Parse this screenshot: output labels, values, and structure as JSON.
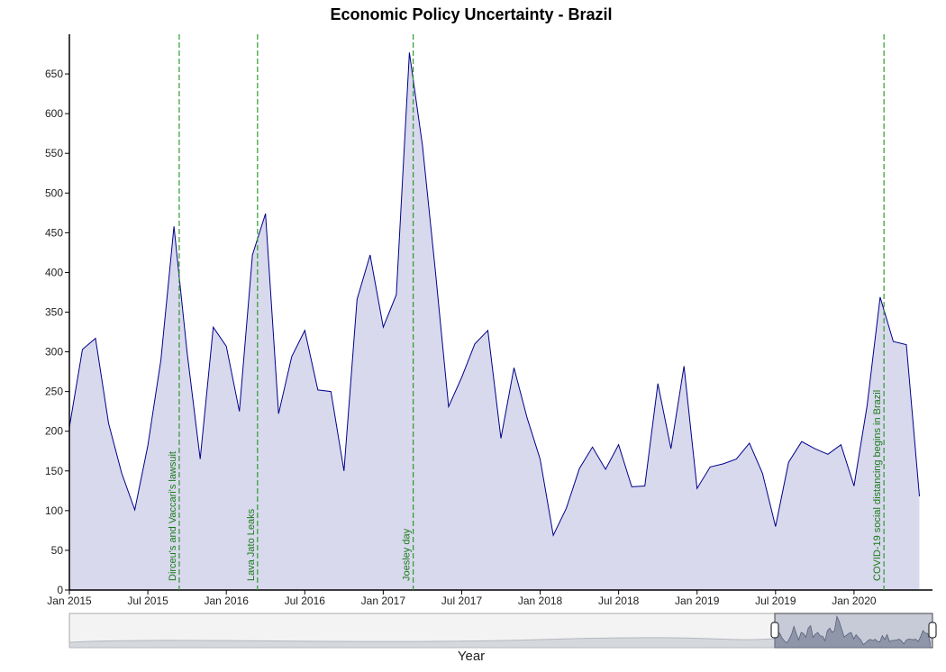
{
  "chart_data": {
    "type": "area",
    "title": "Economic Policy Uncertainty - Brazil",
    "xlabel": "Year",
    "x": [
      "2015-01",
      "2015-02",
      "2015-03",
      "2015-04",
      "2015-05",
      "2015-06",
      "2015-07",
      "2015-08",
      "2015-09",
      "2015-10",
      "2015-11",
      "2015-12",
      "2016-01",
      "2016-02",
      "2016-03",
      "2016-04",
      "2016-05",
      "2016-06",
      "2016-07",
      "2016-08",
      "2016-09",
      "2016-10",
      "2016-11",
      "2016-12",
      "2017-01",
      "2017-02",
      "2017-03",
      "2017-04",
      "2017-05",
      "2017-06",
      "2017-07",
      "2017-08",
      "2017-09",
      "2017-10",
      "2017-11",
      "2017-12",
      "2018-01",
      "2018-02",
      "2018-03",
      "2018-04",
      "2018-05",
      "2018-06",
      "2018-07",
      "2018-08",
      "2018-09",
      "2018-10",
      "2018-11",
      "2018-12",
      "2019-01",
      "2019-02",
      "2019-03",
      "2019-04",
      "2019-05",
      "2019-06",
      "2019-07",
      "2019-08",
      "2019-09",
      "2019-10",
      "2019-11",
      "2019-12",
      "2020-01",
      "2020-02",
      "2020-03",
      "2020-04",
      "2020-05",
      "2020-06"
    ],
    "values": [
      205,
      303,
      317,
      210,
      147,
      101,
      182,
      290,
      458,
      300,
      165,
      331,
      307,
      225,
      422,
      474,
      222,
      294,
      327,
      252,
      250,
      150,
      366,
      422,
      331,
      372,
      677,
      560,
      400,
      231,
      268,
      310,
      327,
      191,
      280,
      217,
      165,
      69,
      103,
      153,
      180,
      152,
      183,
      130,
      131,
      260,
      178,
      282,
      128,
      155,
      159,
      165,
      185,
      147,
      80,
      161,
      187,
      178,
      171,
      183,
      131,
      232,
      369,
      313,
      309,
      118
    ],
    "color": "#00008b",
    "fill": "#d8d9ec",
    "xlim": [
      "2015-01",
      "2020-07"
    ],
    "xticks": [
      {
        "value": "2015-01",
        "label": "Jan 2015"
      },
      {
        "value": "2015-07",
        "label": "Jul 2015"
      },
      {
        "value": "2016-01",
        "label": "Jan 2016"
      },
      {
        "value": "2016-07",
        "label": "Jul 2016"
      },
      {
        "value": "2017-01",
        "label": "Jan 2017"
      },
      {
        "value": "2017-07",
        "label": "Jul 2017"
      },
      {
        "value": "2018-01",
        "label": "Jan 2018"
      },
      {
        "value": "2018-07",
        "label": "Jul 2018"
      },
      {
        "value": "2019-01",
        "label": "Jan 2019"
      },
      {
        "value": "2019-07",
        "label": "Jul 2019"
      },
      {
        "value": "2020-01",
        "label": "Jan 2020"
      }
    ],
    "ylim": [
      0,
      700
    ],
    "yticks": [
      0,
      50,
      100,
      150,
      200,
      250,
      300,
      350,
      400,
      450,
      500,
      550,
      600,
      650
    ],
    "annotations": [
      {
        "x": "2015-09-13",
        "text": "Dirceu's and Vaccari's lawsuit"
      },
      {
        "x": "2016-03-13",
        "text": "Lava Jato Leaks"
      },
      {
        "x": "2017-03-10",
        "text": "Joesley day"
      },
      {
        "x": "2020-03-10",
        "text": "COVID-19 social distancing begins in Brazil"
      }
    ],
    "annotation_color": "#2e9a2e"
  }
}
